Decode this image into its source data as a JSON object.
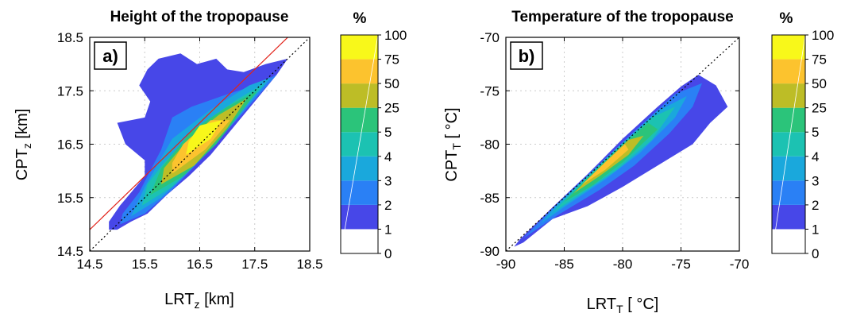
{
  "colors": {
    "cb_levels": [
      "#ffffff",
      "#4747e8",
      "#2a80f5",
      "#1aa8dc",
      "#1cc2b2",
      "#2bc47a",
      "#bdbd26",
      "#fcc32e",
      "#f8f81a"
    ],
    "identity_line": "#000000",
    "offset_line": "#e2231a"
  },
  "chart_data": [
    {
      "type": "heatmap",
      "panel_label": "a)",
      "title": "Height of the tropopause",
      "xlabel": {
        "base": "LRT",
        "sub": "z",
        "unit": " [km]"
      },
      "ylabel": {
        "base": "CPT",
        "sub": "z",
        "unit": " [km]"
      },
      "xlim": [
        14.5,
        18.5
      ],
      "ylim": [
        14.5,
        18.5
      ],
      "xticks": [
        "14.5",
        "15.5",
        "16.5",
        "17.5",
        "18.5"
      ],
      "yticks": [
        "14.5",
        "15.5",
        "16.5",
        "17.5",
        "18.5"
      ],
      "grid": true,
      "lines": [
        {
          "name": "1:1",
          "style": "dotted",
          "color": "#000000",
          "x": [
            14.5,
            18.5
          ],
          "y": [
            14.5,
            18.5
          ]
        },
        {
          "name": "offset",
          "style": "solid",
          "color": "#e2231a",
          "x": [
            14.5,
            18.5
          ],
          "y": [
            14.9,
            18.9
          ]
        }
      ],
      "colorbar": {
        "title": "%",
        "levels": [
          "0",
          "1",
          "2",
          "3",
          "4",
          "5",
          "25",
          "50",
          "75",
          "100"
        ]
      },
      "regions": [
        {
          "level": 1,
          "points": [
            [
              14.85,
              14.9
            ],
            [
              15.0,
              14.9
            ],
            [
              15.25,
              15.05
            ],
            [
              15.55,
              15.2
            ],
            [
              15.9,
              15.55
            ],
            [
              16.3,
              15.9
            ],
            [
              16.7,
              16.3
            ],
            [
              17.1,
              16.8
            ],
            [
              17.5,
              17.3
            ],
            [
              17.9,
              17.8
            ],
            [
              18.1,
              18.1
            ],
            [
              17.7,
              18.0
            ],
            [
              17.3,
              17.85
            ],
            [
              17.0,
              17.9
            ],
            [
              16.8,
              18.1
            ],
            [
              16.45,
              18.0
            ],
            [
              16.15,
              18.2
            ],
            [
              15.75,
              18.1
            ],
            [
              15.55,
              17.9
            ],
            [
              15.4,
              17.6
            ],
            [
              15.6,
              17.3
            ],
            [
              15.5,
              17.0
            ],
            [
              15.0,
              16.9
            ],
            [
              15.15,
              16.5
            ],
            [
              15.5,
              16.2
            ],
            [
              15.5,
              15.9
            ],
            [
              15.05,
              15.35
            ],
            [
              14.85,
              15.05
            ]
          ]
        },
        {
          "level": 2,
          "points": [
            [
              15.05,
              15.0
            ],
            [
              15.5,
              15.2
            ],
            [
              16.0,
              15.65
            ],
            [
              16.6,
              16.3
            ],
            [
              17.3,
              17.1
            ],
            [
              17.9,
              17.8
            ],
            [
              17.5,
              17.6
            ],
            [
              16.9,
              17.4
            ],
            [
              16.35,
              17.2
            ],
            [
              16.0,
              17.0
            ],
            [
              15.8,
              16.4
            ],
            [
              15.4,
              15.6
            ],
            [
              15.1,
              15.2
            ]
          ]
        },
        {
          "level": 3,
          "points": [
            [
              15.25,
              15.15
            ],
            [
              15.8,
              15.5
            ],
            [
              16.4,
              16.1
            ],
            [
              17.1,
              16.9
            ],
            [
              17.8,
              17.75
            ],
            [
              17.4,
              17.6
            ],
            [
              16.7,
              17.15
            ],
            [
              16.0,
              16.6
            ],
            [
              15.5,
              15.7
            ]
          ]
        },
        {
          "level": 4,
          "points": [
            [
              15.45,
              15.35
            ],
            [
              16.0,
              15.7
            ],
            [
              16.6,
              16.3
            ],
            [
              17.3,
              17.2
            ],
            [
              17.7,
              17.65
            ],
            [
              17.2,
              17.35
            ],
            [
              16.5,
              16.85
            ],
            [
              15.85,
              16.15
            ],
            [
              15.55,
              15.75
            ]
          ]
        },
        {
          "level": 5,
          "points": [
            [
              15.6,
              15.55
            ],
            [
              16.2,
              15.9
            ],
            [
              16.8,
              16.5
            ],
            [
              17.4,
              17.3
            ],
            [
              17.55,
              17.5
            ],
            [
              17.0,
              17.2
            ],
            [
              16.35,
              16.75
            ],
            [
              15.8,
              16.05
            ]
          ]
        },
        {
          "level": 6,
          "points": [
            [
              15.8,
              15.75
            ],
            [
              16.4,
              16.1
            ],
            [
              17.0,
              16.8
            ],
            [
              17.35,
              17.35
            ],
            [
              16.85,
              17.05
            ],
            [
              16.3,
              16.6
            ],
            [
              15.85,
              16.05
            ]
          ]
        },
        {
          "level": 7,
          "points": [
            [
              16.0,
              15.95
            ],
            [
              16.6,
              16.4
            ],
            [
              17.05,
              16.95
            ],
            [
              16.7,
              16.95
            ],
            [
              16.2,
              16.5
            ],
            [
              16.0,
              16.15
            ]
          ]
        },
        {
          "level": 8,
          "points": [
            [
              16.25,
              16.3
            ],
            [
              16.7,
              16.6
            ],
            [
              16.9,
              16.95
            ],
            [
              16.5,
              16.85
            ],
            [
              16.3,
              16.55
            ]
          ]
        }
      ]
    },
    {
      "type": "heatmap",
      "panel_label": "b)",
      "title": "Temperature of the tropopause",
      "xlabel": {
        "base": "LRT",
        "sub": "T",
        "unit": " [ °C]"
      },
      "ylabel": {
        "base": "CPT",
        "sub": "T",
        "unit": " [ °C]"
      },
      "xlim": [
        -90,
        -70
      ],
      "ylim": [
        -90,
        -70
      ],
      "xticks": [
        "-90",
        "-85",
        "-80",
        "-75",
        "-70"
      ],
      "yticks": [
        "-90",
        "-85",
        "-80",
        "-75",
        "-70"
      ],
      "grid": true,
      "lines": [
        {
          "name": "1:1",
          "style": "dotted",
          "color": "#000000",
          "x": [
            -90,
            -70
          ],
          "y": [
            -90,
            -70
          ]
        }
      ],
      "colorbar": {
        "title": "%",
        "levels": [
          "0",
          "1",
          "2",
          "3",
          "4",
          "5",
          "25",
          "50",
          "75",
          "100"
        ]
      },
      "regions": [
        {
          "level": 1,
          "points": [
            [
              -89.3,
              -89.6
            ],
            [
              -88.5,
              -89.2
            ],
            [
              -86.0,
              -87.0
            ],
            [
              -83.0,
              -85.8
            ],
            [
              -80.0,
              -84.0
            ],
            [
              -77.0,
              -82.0
            ],
            [
              -74.0,
              -80.0
            ],
            [
              -72.5,
              -78.0
            ],
            [
              -71.0,
              -76.5
            ],
            [
              -72.0,
              -74.5
            ],
            [
              -73.5,
              -73.5
            ],
            [
              -75.0,
              -74.6
            ],
            [
              -77.0,
              -76.5
            ],
            [
              -80.0,
              -79.5
            ],
            [
              -83.0,
              -82.8
            ],
            [
              -86.0,
              -85.9
            ],
            [
              -88.8,
              -88.9
            ]
          ]
        },
        {
          "level": 2,
          "points": [
            [
              -88.5,
              -88.8
            ],
            [
              -85.5,
              -86.6
            ],
            [
              -82.0,
              -84.3
            ],
            [
              -79.0,
              -82.0
            ],
            [
              -76.0,
              -79.0
            ],
            [
              -74.0,
              -76.5
            ],
            [
              -73.2,
              -74.3
            ],
            [
              -75.5,
              -75.3
            ],
            [
              -79.0,
              -78.8
            ],
            [
              -83.0,
              -82.9
            ],
            [
              -86.0,
              -86.0
            ]
          ]
        },
        {
          "level": 3,
          "points": [
            [
              -87.0,
              -87.4
            ],
            [
              -84.5,
              -85.5
            ],
            [
              -81.5,
              -83.3
            ],
            [
              -78.5,
              -80.8
            ],
            [
              -75.5,
              -77.5
            ],
            [
              -74.5,
              -75.5
            ],
            [
              -77.0,
              -76.9
            ],
            [
              -80.0,
              -79.9
            ],
            [
              -83.0,
              -83.0
            ],
            [
              -85.5,
              -85.5
            ]
          ]
        },
        {
          "level": 4,
          "points": [
            [
              -86.0,
              -86.4
            ],
            [
              -83.5,
              -84.6
            ],
            [
              -80.5,
              -82.4
            ],
            [
              -77.5,
              -79.6
            ],
            [
              -75.5,
              -76.5
            ],
            [
              -77.5,
              -77.5
            ],
            [
              -80.5,
              -80.4
            ],
            [
              -83.5,
              -83.5
            ]
          ]
        },
        {
          "level": 5,
          "points": [
            [
              -85.0,
              -85.4
            ],
            [
              -82.5,
              -83.8
            ],
            [
              -80.0,
              -81.7
            ],
            [
              -77.0,
              -78.6
            ],
            [
              -77.8,
              -78.0
            ],
            [
              -80.5,
              -80.6
            ],
            [
              -83.0,
              -83.2
            ]
          ]
        },
        {
          "level": 6,
          "points": [
            [
              -84.2,
              -84.6
            ],
            [
              -82.0,
              -83.0
            ],
            [
              -79.5,
              -81.0
            ],
            [
              -78.2,
              -79.2
            ],
            [
              -79.5,
              -79.6
            ],
            [
              -82.0,
              -82.2
            ]
          ]
        },
        {
          "level": 7,
          "points": [
            [
              -83.5,
              -83.8
            ],
            [
              -81.5,
              -82.4
            ],
            [
              -79.5,
              -80.5
            ],
            [
              -79.8,
              -80.0
            ],
            [
              -81.5,
              -81.7
            ]
          ]
        }
      ]
    }
  ]
}
